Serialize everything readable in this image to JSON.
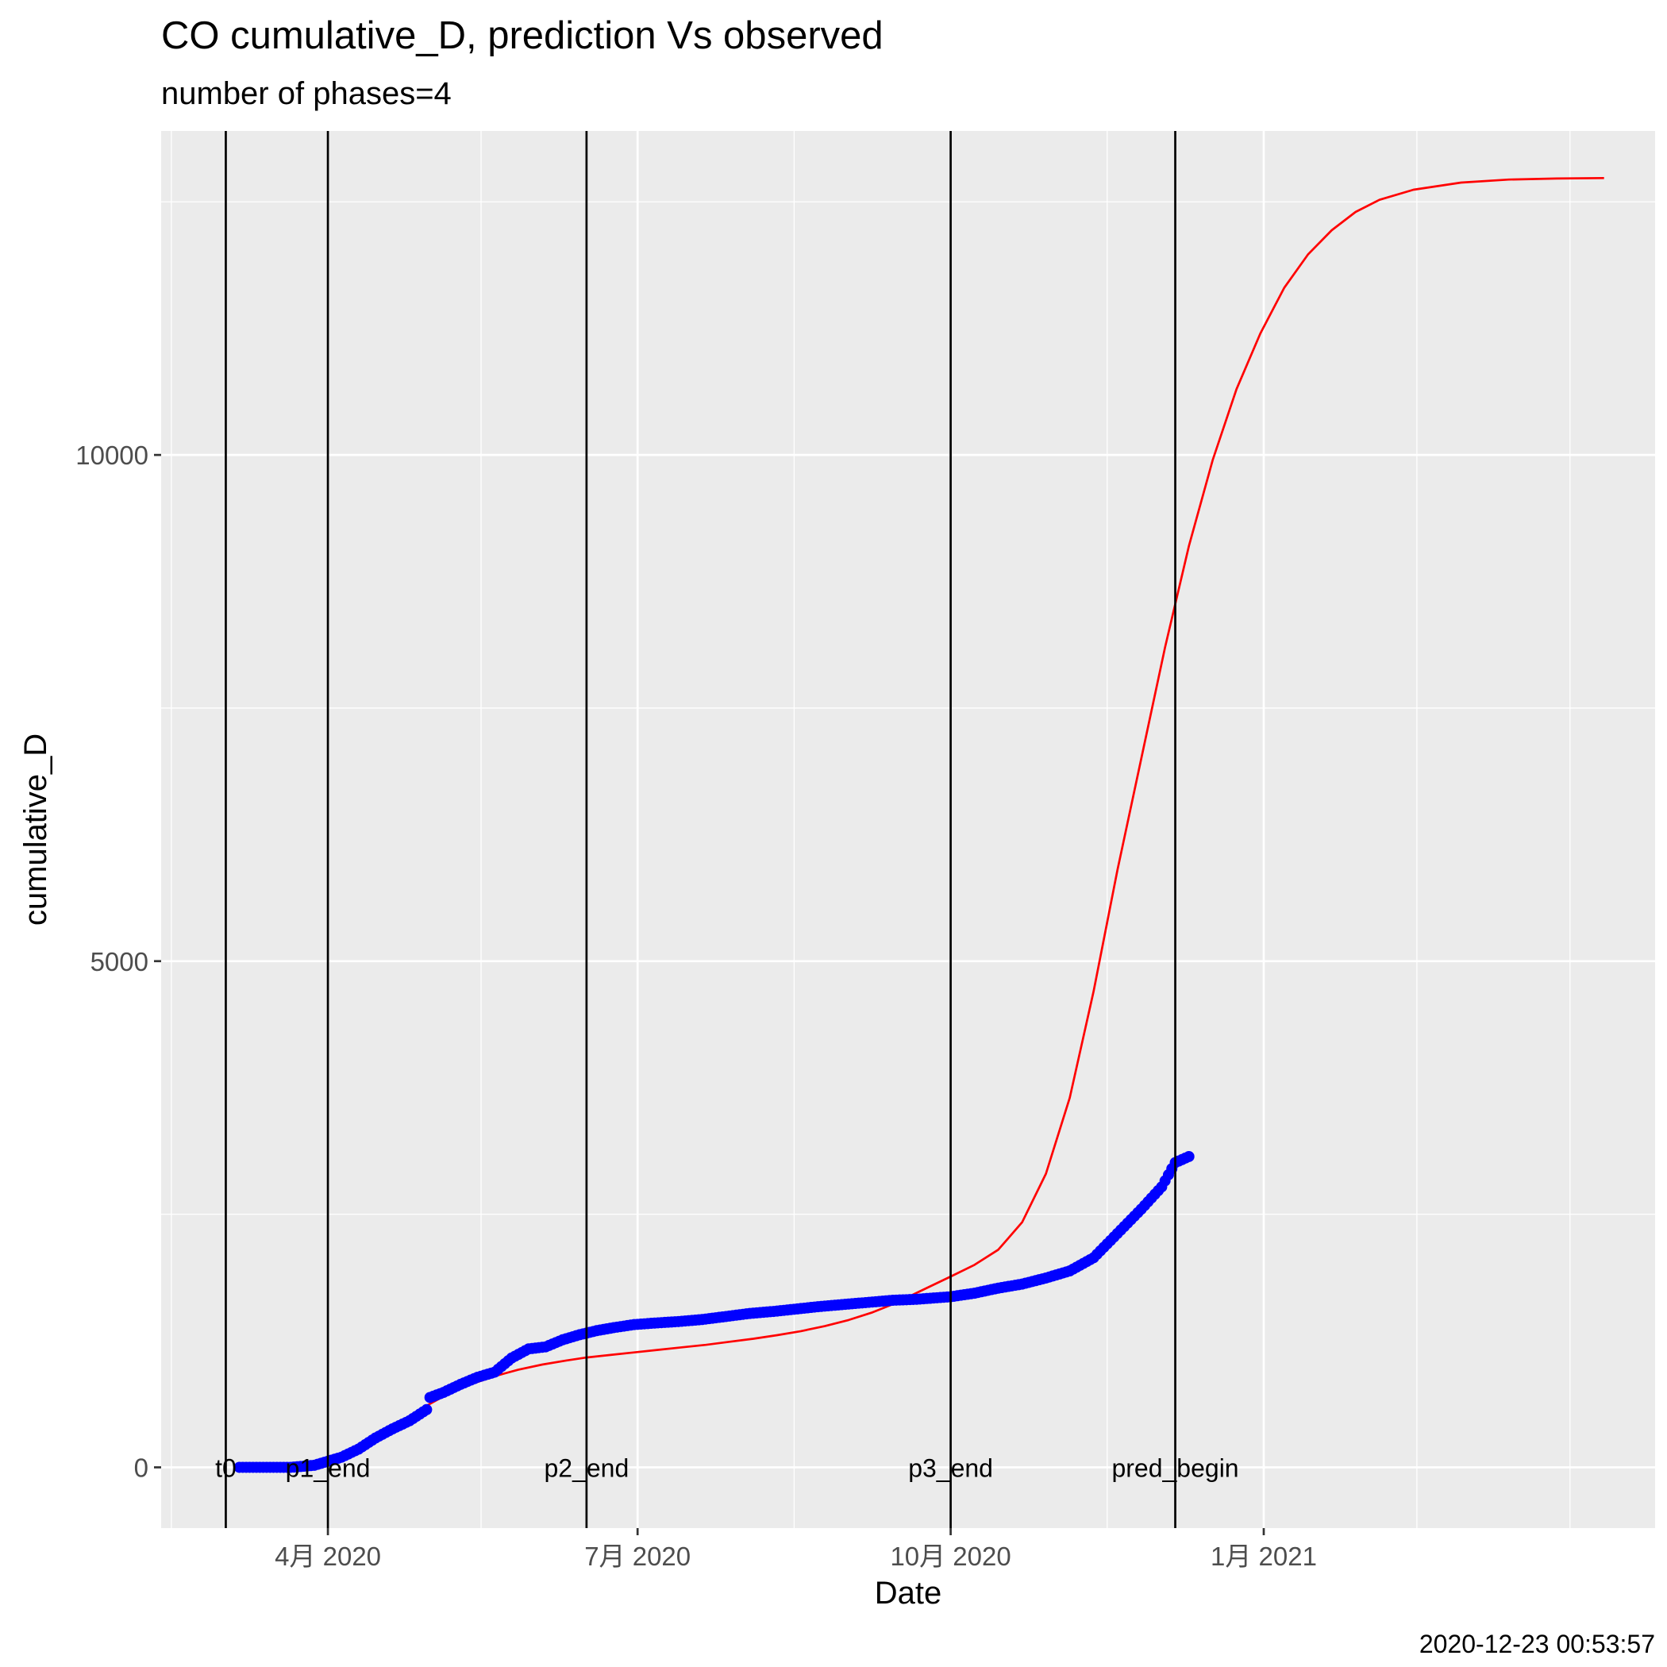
{
  "title": "CO cumulative_D,  prediction Vs observed",
  "subtitle": "number of phases=4",
  "caption": "2020-12-23 00:53:57",
  "chart_data": {
    "type": "line",
    "title": "CO cumulative_D,  prediction Vs observed",
    "subtitle": "number of phases=4",
    "xlabel": "Date",
    "ylabel": "cumulative_D",
    "xlim": [
      "2020-02-12",
      "2021-04-26"
    ],
    "ylim": [
      -600,
      13200
    ],
    "x_ticks": [
      {
        "date": "2020-04-01",
        "label": "4月 2020"
      },
      {
        "date": "2020-07-01",
        "label": "7月 2020"
      },
      {
        "date": "2020-10-01",
        "label": "10月 2020"
      },
      {
        "date": "2021-01-01",
        "label": "1月 2021"
      }
    ],
    "x_minor_ticks": [
      "2020-02-15",
      "2020-05-16",
      "2020-08-16",
      "2020-11-16",
      "2021-02-15",
      "2021-04-01"
    ],
    "y_ticks": [
      0,
      5000,
      10000
    ],
    "y_minor_ticks": [
      2500,
      7500,
      12500
    ],
    "grid": true,
    "legend": "none",
    "phase_lines": [
      {
        "date": "2020-03-02",
        "label": "t0"
      },
      {
        "date": "2020-04-01",
        "label": "p1_end"
      },
      {
        "date": "2020-06-16",
        "label": "p2_end"
      },
      {
        "date": "2020-10-01",
        "label": "p3_end"
      },
      {
        "date": "2020-12-06",
        "label": "pred_begin"
      }
    ],
    "series": [
      {
        "kind": "line",
        "color": "#ff0000",
        "points": [
          [
            "2020-03-05",
            0
          ],
          [
            "2020-03-15",
            5
          ],
          [
            "2020-03-25",
            20
          ],
          [
            "2020-04-01",
            50
          ],
          [
            "2020-04-08",
            140
          ],
          [
            "2020-04-15",
            280
          ],
          [
            "2020-04-22",
            440
          ],
          [
            "2020-04-29",
            590
          ],
          [
            "2020-05-06",
            720
          ],
          [
            "2020-05-13",
            820
          ],
          [
            "2020-05-20",
            900
          ],
          [
            "2020-05-27",
            965
          ],
          [
            "2020-06-03",
            1015
          ],
          [
            "2020-06-10",
            1055
          ],
          [
            "2020-06-16",
            1085
          ],
          [
            "2020-06-23",
            1110
          ],
          [
            "2020-06-30",
            1135
          ],
          [
            "2020-07-07",
            1160
          ],
          [
            "2020-07-14",
            1185
          ],
          [
            "2020-07-21",
            1210
          ],
          [
            "2020-07-28",
            1240
          ],
          [
            "2020-08-04",
            1270
          ],
          [
            "2020-08-11",
            1305
          ],
          [
            "2020-08-18",
            1345
          ],
          [
            "2020-08-25",
            1395
          ],
          [
            "2020-09-01",
            1455
          ],
          [
            "2020-09-08",
            1530
          ],
          [
            "2020-09-15",
            1625
          ],
          [
            "2020-09-22",
            1740
          ],
          [
            "2020-10-01",
            1885
          ],
          [
            "2020-10-08",
            2000
          ],
          [
            "2020-10-15",
            2150
          ],
          [
            "2020-10-22",
            2420
          ],
          [
            "2020-10-29",
            2900
          ],
          [
            "2020-11-05",
            3650
          ],
          [
            "2020-11-12",
            4700
          ],
          [
            "2020-11-19",
            5900
          ],
          [
            "2020-11-26",
            7000
          ],
          [
            "2020-12-03",
            8100
          ],
          [
            "2020-12-10",
            9100
          ],
          [
            "2020-12-17",
            9950
          ],
          [
            "2020-12-24",
            10650
          ],
          [
            "2020-12-31",
            11200
          ],
          [
            "2021-01-07",
            11650
          ],
          [
            "2021-01-14",
            11980
          ],
          [
            "2021-01-21",
            12220
          ],
          [
            "2021-01-28",
            12400
          ],
          [
            "2021-02-04",
            12520
          ],
          [
            "2021-02-14",
            12620
          ],
          [
            "2021-02-28",
            12690
          ],
          [
            "2021-03-14",
            12720
          ],
          [
            "2021-03-28",
            12730
          ],
          [
            "2021-04-11",
            12735
          ]
        ]
      },
      {
        "kind": "points",
        "color": "#0000ff",
        "points": [
          [
            "2020-03-06",
            0
          ],
          [
            "2020-03-14",
            0
          ],
          [
            "2020-03-21",
            0
          ],
          [
            "2020-03-28",
            20
          ],
          [
            "2020-04-01",
            60
          ],
          [
            "2020-04-05",
            100
          ],
          [
            "2020-04-10",
            180
          ],
          [
            "2020-04-15",
            290
          ],
          [
            "2020-04-20",
            380
          ],
          [
            "2020-04-25",
            460
          ],
          [
            "2020-04-30",
            570
          ],
          [
            "2020-05-01",
            690
          ],
          [
            "2020-05-05",
            740
          ],
          [
            "2020-05-10",
            820
          ],
          [
            "2020-05-15",
            890
          ],
          [
            "2020-05-20",
            940
          ],
          [
            "2020-05-25",
            1080
          ],
          [
            "2020-05-30",
            1170
          ],
          [
            "2020-06-04",
            1190
          ],
          [
            "2020-06-09",
            1260
          ],
          [
            "2020-06-14",
            1310
          ],
          [
            "2020-06-19",
            1350
          ],
          [
            "2020-06-24",
            1380
          ],
          [
            "2020-06-30",
            1410
          ],
          [
            "2020-07-06",
            1425
          ],
          [
            "2020-07-13",
            1440
          ],
          [
            "2020-07-20",
            1460
          ],
          [
            "2020-07-27",
            1490
          ],
          [
            "2020-08-03",
            1520
          ],
          [
            "2020-08-10",
            1540
          ],
          [
            "2020-08-17",
            1565
          ],
          [
            "2020-08-24",
            1590
          ],
          [
            "2020-08-31",
            1610
          ],
          [
            "2020-09-07",
            1630
          ],
          [
            "2020-09-14",
            1650
          ],
          [
            "2020-09-21",
            1660
          ],
          [
            "2020-10-01",
            1685
          ],
          [
            "2020-10-08",
            1720
          ],
          [
            "2020-10-15",
            1770
          ],
          [
            "2020-10-22",
            1810
          ],
          [
            "2020-10-29",
            1870
          ],
          [
            "2020-11-05",
            1940
          ],
          [
            "2020-11-12",
            2070
          ],
          [
            "2020-11-19",
            2310
          ],
          [
            "2020-11-26",
            2550
          ],
          [
            "2020-12-02",
            2770
          ],
          [
            "2020-12-06",
            3010
          ],
          [
            "2020-12-10",
            3070
          ]
        ]
      }
    ]
  }
}
